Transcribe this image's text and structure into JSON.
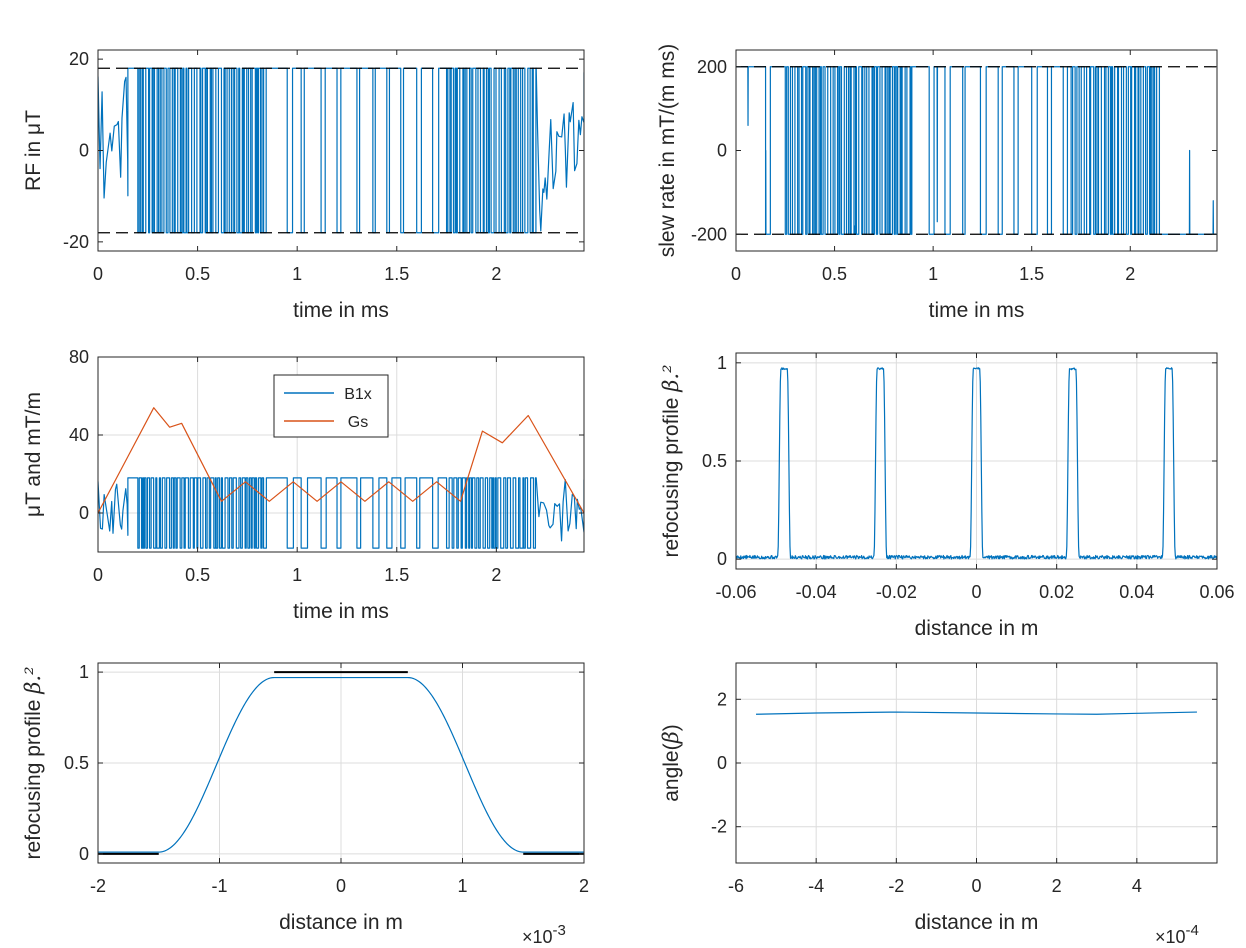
{
  "figure": {
    "colors": {
      "blue": "#0072BD",
      "orange": "#D95319",
      "black": "#000000",
      "grid": "#dcdcdc",
      "axis": "#262626"
    }
  },
  "chart_data": [
    {
      "id": "p1",
      "type": "line",
      "xlabel": "time in ms",
      "ylabel": "RF in μT",
      "xlim": [
        0,
        2.44
      ],
      "ylim": [
        -22,
        22
      ],
      "xticks": [
        0,
        0.5,
        1,
        1.5,
        2
      ],
      "xtick_labels": [
        "0",
        "0.5",
        "1",
        "1.5",
        "2"
      ],
      "yticks": [
        -20,
        0,
        20
      ],
      "ytick_labels": [
        "-20",
        "0",
        "20"
      ],
      "grid": false,
      "series": [
        {
          "name": "RF",
          "color": "#0072BD",
          "style": "solid",
          "pattern": "bang-bang",
          "amplitude": 18,
          "t_start": 0,
          "t_end": 2.44,
          "dense_intervals": [
            [
              0.2,
              0.85
            ],
            [
              1.75,
              2.2
            ]
          ],
          "sparse_switch_times": [
            0.95,
            1.02,
            1.12,
            1.2,
            1.3,
            1.38,
            1.45,
            1.52,
            1.6,
            1.68
          ],
          "ringing_intervals": [
            [
              0.0,
              0.15
            ],
            [
              2.2,
              2.44
            ]
          ],
          "seed": 11
        },
        {
          "name": "limit upper",
          "color": "#000000",
          "style": "dashed",
          "x": [
            0,
            2.44
          ],
          "y": [
            18,
            18
          ]
        },
        {
          "name": "limit lower",
          "color": "#000000",
          "style": "dashed",
          "x": [
            0,
            2.44
          ],
          "y": [
            -18,
            -18
          ]
        }
      ]
    },
    {
      "id": "p2",
      "type": "line",
      "xlabel": "time in ms",
      "ylabel": "slew rate in mT/(m ms)",
      "xlim": [
        0,
        2.44
      ],
      "ylim": [
        -240,
        240
      ],
      "xticks": [
        0,
        0.5,
        1,
        1.5,
        2
      ],
      "xtick_labels": [
        "0",
        "0.5",
        "1",
        "1.5",
        "2"
      ],
      "yticks": [
        -200,
        0,
        200
      ],
      "ytick_labels": [
        "-200",
        "0",
        "200"
      ],
      "grid": false,
      "series": [
        {
          "name": "slew rate",
          "color": "#0072BD",
          "style": "solid",
          "pattern": "bang-bang",
          "amplitude": 200,
          "t_start": 0,
          "t_end": 2.44,
          "dense_intervals": [
            [
              0.25,
              0.9
            ],
            [
              1.7,
              2.15
            ]
          ],
          "sparse_switch_times": [
            0.15,
            0.98,
            1.06,
            1.15,
            1.24,
            1.33,
            1.41,
            1.5,
            1.58,
            1.66
          ],
          "spike_times": [
            0.06,
            0.15,
            0.6,
            1.02,
            2.3,
            2.42
          ],
          "spike_values": [
            60,
            0,
            -180,
            -170,
            0,
            -120
          ],
          "seed": 23
        },
        {
          "name": "limit upper",
          "color": "#000000",
          "style": "dashed",
          "x": [
            0,
            2.44
          ],
          "y": [
            200,
            200
          ]
        },
        {
          "name": "limit lower",
          "color": "#000000",
          "style": "dashed",
          "x": [
            0,
            2.44
          ],
          "y": [
            -200,
            -200
          ]
        }
      ]
    },
    {
      "id": "p3",
      "type": "line",
      "xlabel": "time in ms",
      "ylabel": "μT and mT/m",
      "xlim": [
        0,
        2.44
      ],
      "ylim": [
        -20,
        80
      ],
      "xticks": [
        0,
        0.5,
        1,
        1.5,
        2
      ],
      "xtick_labels": [
        "0",
        "0.5",
        "1",
        "1.5",
        "2"
      ],
      "yticks": [
        0,
        40,
        80
      ],
      "ytick_labels": [
        "0",
        "40",
        "80"
      ],
      "grid": true,
      "legend": {
        "location": "top-center",
        "entries": [
          "B1x",
          "Gs"
        ]
      },
      "series": [
        {
          "name": "B1x",
          "color": "#0072BD",
          "style": "solid",
          "pattern": "bang-bang",
          "amplitude": 18,
          "t_start": 0,
          "t_end": 2.44,
          "dense_intervals": [
            [
              0.2,
              0.85
            ],
            [
              1.75,
              2.2
            ]
          ],
          "sparse_switch_times": [
            0.95,
            1.02,
            1.12,
            1.2,
            1.3,
            1.38,
            1.45,
            1.52,
            1.6,
            1.68
          ],
          "ringing_intervals": [
            [
              0.0,
              0.15
            ],
            [
              2.2,
              2.44
            ]
          ],
          "seed": 37
        },
        {
          "name": "Gs",
          "color": "#D95319",
          "style": "solid",
          "x": [
            0,
            0.28,
            0.36,
            0.42,
            0.62,
            0.74,
            0.86,
            0.98,
            1.1,
            1.22,
            1.34,
            1.46,
            1.58,
            1.7,
            1.82,
            1.93,
            2.03,
            2.16,
            2.44
          ],
          "y": [
            0,
            54,
            44,
            46,
            6,
            16,
            6,
            16,
            6,
            16,
            6,
            16,
            6,
            16,
            6,
            42,
            36,
            50,
            0
          ]
        }
      ]
    },
    {
      "id": "p4",
      "type": "line",
      "xlabel": "distance in m",
      "ylabel": "refocusing profile",
      "ylabel_math": "β.²",
      "xlim": [
        -0.06,
        0.06
      ],
      "ylim": [
        -0.05,
        1.05
      ],
      "xticks": [
        -0.06,
        -0.04,
        -0.02,
        0,
        0.02,
        0.04,
        0.06
      ],
      "xtick_labels": [
        "-0.06",
        "-0.04",
        "-0.02",
        "0",
        "0.02",
        "0.04",
        "0.06"
      ],
      "yticks": [
        0,
        0.5,
        1
      ],
      "ytick_labels": [
        "0",
        "0.5",
        "1"
      ],
      "grid": true,
      "series": [
        {
          "name": "profile",
          "color": "#0072BD",
          "style": "solid",
          "pulse_centers": [
            -0.048,
            -0.024,
            0,
            0.024,
            0.048
          ],
          "pulse_peak": 0.97,
          "pulse_halfwidth": 0.0012,
          "edge": 0.0004,
          "baseline": 0.01,
          "seed": 5
        }
      ]
    },
    {
      "id": "p5",
      "type": "line",
      "xlabel": "distance in m",
      "x_exponent": "×10",
      "x_exponent_power": "-3",
      "ylabel": "refocusing profile",
      "ylabel_math": "β.²",
      "xlim": [
        -2,
        2
      ],
      "ylim": [
        -0.05,
        1.05
      ],
      "xticks": [
        -2,
        -1,
        0,
        1,
        2
      ],
      "xtick_labels": [
        "-2",
        "-1",
        "0",
        "1",
        "2"
      ],
      "yticks": [
        0,
        0.5,
        1
      ],
      "ytick_labels": [
        "0",
        "0.5",
        "1"
      ],
      "grid": true,
      "series": [
        {
          "name": "profile",
          "color": "#0072BD",
          "style": "solid",
          "plateau": 0.97,
          "plateau_halfwidth": 0.55,
          "transition_end": 1.5,
          "baseline": 0.01
        },
        {
          "name": "target passband",
          "color": "#000000",
          "style": "solid",
          "x": [
            -0.55,
            0.55
          ],
          "y": [
            1,
            1
          ]
        },
        {
          "name": "target stopband left",
          "color": "#000000",
          "style": "solid",
          "x": [
            -2,
            -1.5
          ],
          "y": [
            0,
            0
          ]
        },
        {
          "name": "target stopband right",
          "color": "#000000",
          "style": "solid",
          "x": [
            1.5,
            2
          ],
          "y": [
            0,
            0
          ]
        }
      ]
    },
    {
      "id": "p6",
      "type": "line",
      "xlabel": "distance in m",
      "x_exponent": "×10",
      "x_exponent_power": "-4",
      "ylabel": "angle(",
      "ylabel_math": "β",
      "ylabel_close": ")",
      "xlim": [
        -6,
        6
      ],
      "ylim": [
        -3.14,
        3.14
      ],
      "xticks": [
        -6,
        -4,
        -2,
        0,
        2,
        4
      ],
      "xtick_labels": [
        "-6",
        "-4",
        "-2",
        "0",
        "2",
        "4"
      ],
      "yticks": [
        -2,
        0,
        2
      ],
      "ytick_labels": [
        "-2",
        "0",
        "2"
      ],
      "grid": true,
      "series": [
        {
          "name": "phase",
          "color": "#0072BD",
          "style": "solid",
          "x": [
            -5.5,
            -4,
            -2,
            0,
            2,
            3,
            4,
            5.5
          ],
          "y": [
            1.53,
            1.57,
            1.6,
            1.57,
            1.54,
            1.53,
            1.56,
            1.6
          ]
        }
      ]
    }
  ]
}
